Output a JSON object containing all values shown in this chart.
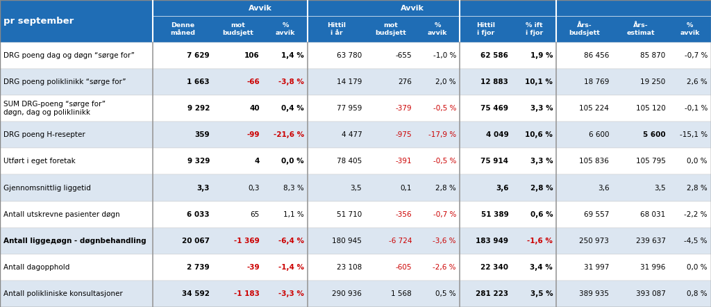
{
  "title": "pr september",
  "header_bg": "#1F6DB5",
  "header_text_color": "#FFFFFF",
  "rows": [
    {
      "label": "DRG poeng dag og døgn “sørge for”",
      "values": [
        "7 629",
        "106",
        "1,4 %",
        "63 780",
        "-655",
        "-1,0 %",
        "62 586",
        "1,9 %",
        "86 456",
        "85 870",
        "-0,7 %"
      ],
      "bold_cols": [
        0,
        1,
        2,
        6,
        7
      ],
      "red_cols": [],
      "bg": "#FFFFFF",
      "label_bold": false
    },
    {
      "label": "DRG poeng poliklinikk “sørge for”",
      "values": [
        "1 663",
        "-66",
        "-3,8 %",
        "14 179",
        "276",
        "2,0 %",
        "12 883",
        "10,1 %",
        "18 769",
        "19 250",
        "2,6 %"
      ],
      "bold_cols": [
        0,
        1,
        2,
        6,
        7
      ],
      "red_cols": [
        1,
        2
      ],
      "bg": "#DCE6F1",
      "label_bold": false
    },
    {
      "label": "SUM DRG-poeng “sørge for”\ndøgn, dag og poliklinikk",
      "values": [
        "9 292",
        "40",
        "0,4 %",
        "77 959",
        "-379",
        "-0,5 %",
        "75 469",
        "3,3 %",
        "105 224",
        "105 120",
        "-0,1 %"
      ],
      "bold_cols": [
        0,
        1,
        2,
        6,
        7
      ],
      "red_cols": [
        4,
        5
      ],
      "bg": "#FFFFFF",
      "label_bold": false,
      "multiline": true
    },
    {
      "label": "DRG poeng H-resepter",
      "values": [
        "359",
        "-99",
        "-21,6 %",
        "4 477",
        "-975",
        "-17,9 %",
        "4 049",
        "10,6 %",
        "6 600",
        "5 600",
        "-15,1 %"
      ],
      "bold_cols": [
        0,
        1,
        2,
        6,
        7,
        9
      ],
      "red_cols": [
        1,
        2,
        4,
        5
      ],
      "bg": "#DCE6F1",
      "label_bold": false
    },
    {
      "label": "Utført i eget foretak",
      "values": [
        "9 329",
        "4",
        "0,0 %",
        "78 405",
        "-391",
        "-0,5 %",
        "75 914",
        "3,3 %",
        "105 836",
        "105 795",
        "0,0 %"
      ],
      "bold_cols": [
        0,
        1,
        2,
        6,
        7
      ],
      "red_cols": [
        4,
        5
      ],
      "bg": "#FFFFFF",
      "label_bold": false
    },
    {
      "label": "Gjennomsnittlig liggetid",
      "values": [
        "3,3",
        "0,3",
        "8,3 %",
        "3,5",
        "0,1",
        "2,8 %",
        "3,6",
        "2,8 %",
        "3,6",
        "3,5",
        "2,8 %"
      ],
      "bold_cols": [
        0,
        6,
        7
      ],
      "red_cols": [],
      "bg": "#DCE6F1",
      "label_bold": false
    },
    {
      "label": "Antall utskrevne pasienter døgn",
      "values": [
        "6 033",
        "65",
        "1,1 %",
        "51 710",
        "-356",
        "-0,7 %",
        "51 389",
        "0,6 %",
        "69 557",
        "68 031",
        "-2,2 %"
      ],
      "bold_cols": [
        0,
        6,
        7
      ],
      "red_cols": [
        4,
        5
      ],
      "bg": "#FFFFFF",
      "label_bold": false
    },
    {
      "label": "Antall liggедøgn - døgnbehandling",
      "values": [
        "20 067",
        "-1 369",
        "-6,4 %",
        "180 945",
        "-6 724",
        "-3,6 %",
        "183 949",
        "-1,6 %",
        "250 973",
        "239 637",
        "-4,5 %"
      ],
      "bold_cols": [
        0,
        1,
        2,
        6,
        7
      ],
      "red_cols": [
        1,
        2,
        4,
        5,
        7
      ],
      "bg": "#DCE6F1",
      "label_bold": true
    },
    {
      "label": "Antall dagopphold",
      "values": [
        "2 739",
        "-39",
        "-1,4 %",
        "23 108",
        "-605",
        "-2,6 %",
        "22 340",
        "3,4 %",
        "31 997",
        "31 996",
        "0,0 %"
      ],
      "bold_cols": [
        0,
        1,
        2,
        6,
        7
      ],
      "red_cols": [
        1,
        2,
        4,
        5
      ],
      "bg": "#FFFFFF",
      "label_bold": false
    },
    {
      "label": "Antall polikliniske konsultasjoner",
      "values": [
        "34 592",
        "-1 183",
        "-3,3 %",
        "290 936",
        "1 568",
        "0,5 %",
        "281 223",
        "3,5 %",
        "389 935",
        "393 087",
        "0,8 %"
      ],
      "bold_cols": [
        0,
        1,
        2,
        6,
        7
      ],
      "red_cols": [
        1,
        2
      ],
      "bg": "#DCE6F1",
      "label_bold": false
    }
  ],
  "figsize": [
    10.24,
    4.42
  ],
  "dpi": 100
}
